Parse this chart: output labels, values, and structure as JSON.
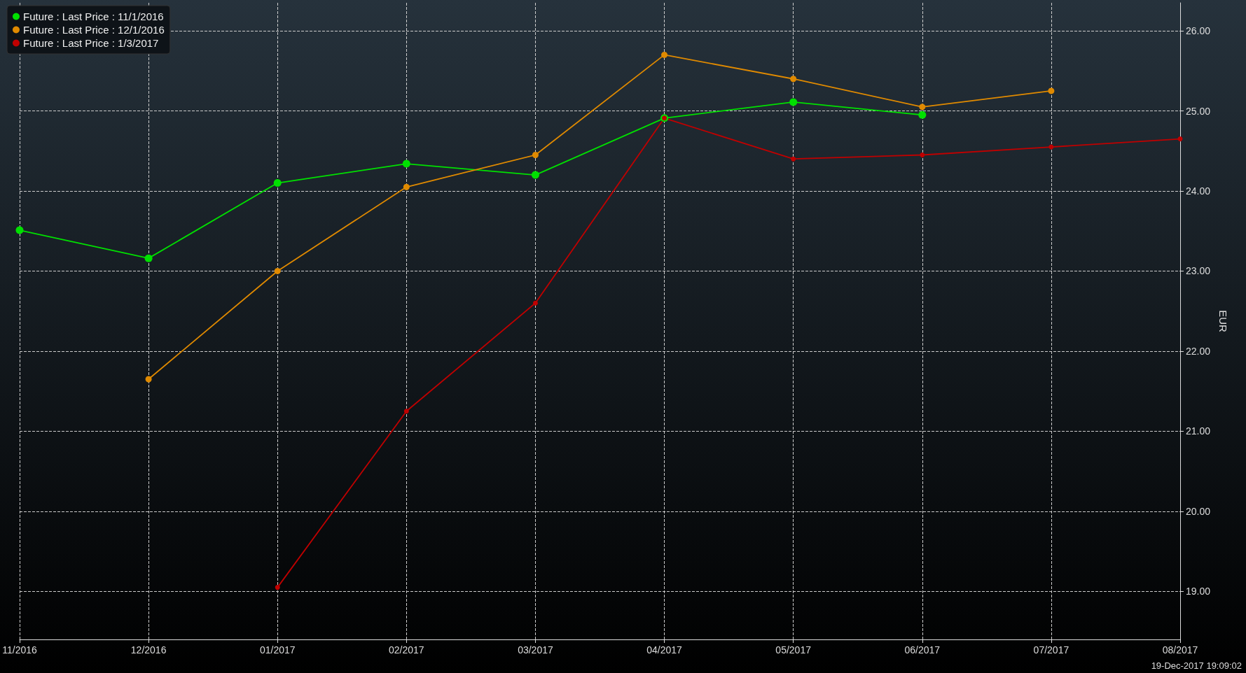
{
  "chart_data": {
    "type": "line",
    "ylabel": "EUR",
    "categories": [
      "11/2016",
      "12/2016",
      "01/2017",
      "02/2017",
      "03/2017",
      "04/2017",
      "05/2017",
      "06/2017",
      "07/2017",
      "08/2017"
    ],
    "series": [
      {
        "name": "Future : Last Price : 11/1/2016",
        "color": "#00e000",
        "values": [
          23.51,
          23.16,
          24.1,
          24.34,
          24.2,
          24.91,
          25.11,
          24.95,
          null,
          null
        ]
      },
      {
        "name": "Future : Last Price : 12/1/2016",
        "color": "#e08a00",
        "values": [
          null,
          21.65,
          23.0,
          24.05,
          24.45,
          25.7,
          25.4,
          25.05,
          25.25,
          null
        ]
      },
      {
        "name": "Future : Last Price : 1/3/2017",
        "color": "#c00000",
        "values": [
          null,
          null,
          19.05,
          21.25,
          22.6,
          24.91,
          24.4,
          24.45,
          24.55,
          24.65
        ]
      }
    ],
    "ylim": [
      18.4,
      26.35
    ],
    "yticks": [
      {
        "value": 19,
        "label": "19.00"
      },
      {
        "value": 20,
        "label": "20.00"
      },
      {
        "value": 21,
        "label": "21.00"
      },
      {
        "value": 22,
        "label": "22.00"
      },
      {
        "value": 23,
        "label": "23.00"
      },
      {
        "value": 24,
        "label": "24.00"
      },
      {
        "value": 25,
        "label": "25.00"
      },
      {
        "value": 26,
        "label": "26.00"
      }
    ],
    "grid": true,
    "legend": "top left",
    "marker": "circle",
    "line_style": "solid",
    "annotations": [
      "19-Dec-2017 19:09:02"
    ]
  }
}
